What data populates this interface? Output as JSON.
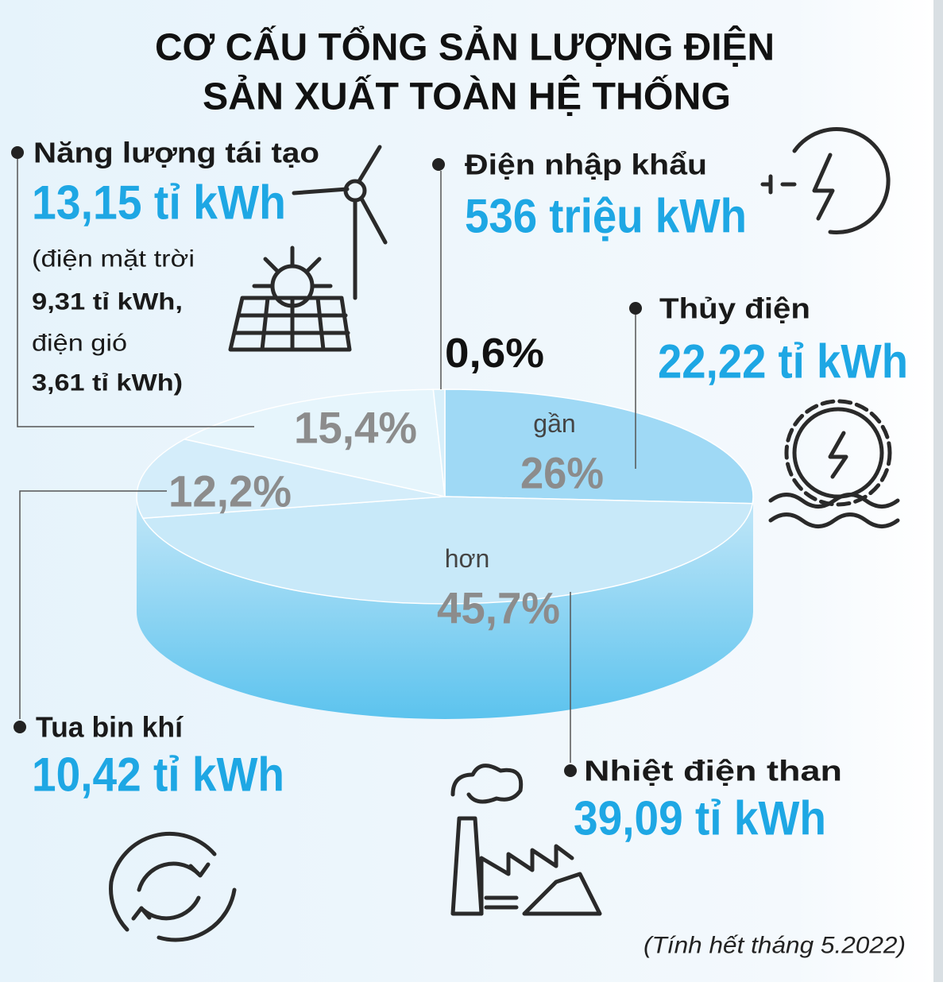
{
  "title": [
    "CƠ CẤU TỔNG SẢN LƯỢNG ĐIỆN",
    "SẢN XUẤT TOÀN HỆ THỐNG"
  ],
  "chart_data": {
    "type": "pie",
    "slices": [
      {
        "name": "Thủy điện",
        "value": 26,
        "value_label": "26%",
        "qualifier": "gần",
        "amount": "22,22 tỉ kWh",
        "color": "#9fd9f5"
      },
      {
        "name": "Nhiệt điện than",
        "value": 45.7,
        "value_label": "45,7%",
        "qualifier": "hơn",
        "amount": "39,09 tỉ kWh",
        "color": "#c8e9f9"
      },
      {
        "name": "Tua bin khí",
        "value": 12.2,
        "value_label": "12,2%",
        "amount": "10,42 tỉ kWh",
        "color": "#d4edfa"
      },
      {
        "name": "Năng lượng tái tạo",
        "value": 15.4,
        "value_label": "15,4%",
        "amount": "13,15 tỉ kWh",
        "details": [
          "(điện mặt trời",
          "9,31 tỉ kWh,",
          "điện gió",
          "3,61 tỉ kWh)"
        ],
        "color": "#e6f5fc"
      },
      {
        "name": "Điện nhập khẩu",
        "value": 0.6,
        "value_label": "0,6%",
        "amount": "536 triệu kWh",
        "color": "#d8effa"
      }
    ]
  },
  "note": "(Tính hết tháng 5.2022)"
}
